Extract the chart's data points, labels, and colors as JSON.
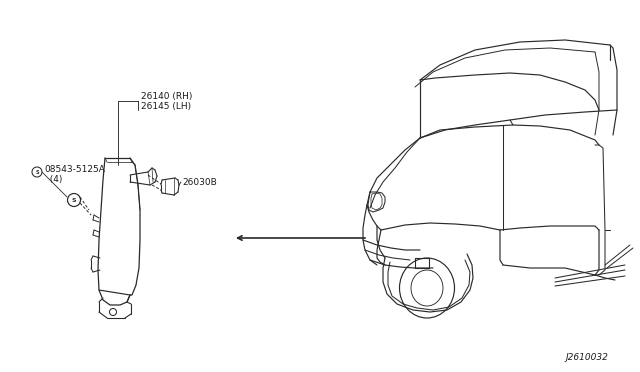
{
  "bg_color": "#ffffff",
  "line_color": "#2a2a2a",
  "text_color": "#1a1a1a",
  "part_label_1": "26140 (RH)",
  "part_label_2": "26145 (LH)",
  "part_label_3": "26030B",
  "part_label_4": "08543-5125A",
  "part_label_4b": "  (4)",
  "diagram_number": "J2610032",
  "font_size_labels": 6.5
}
